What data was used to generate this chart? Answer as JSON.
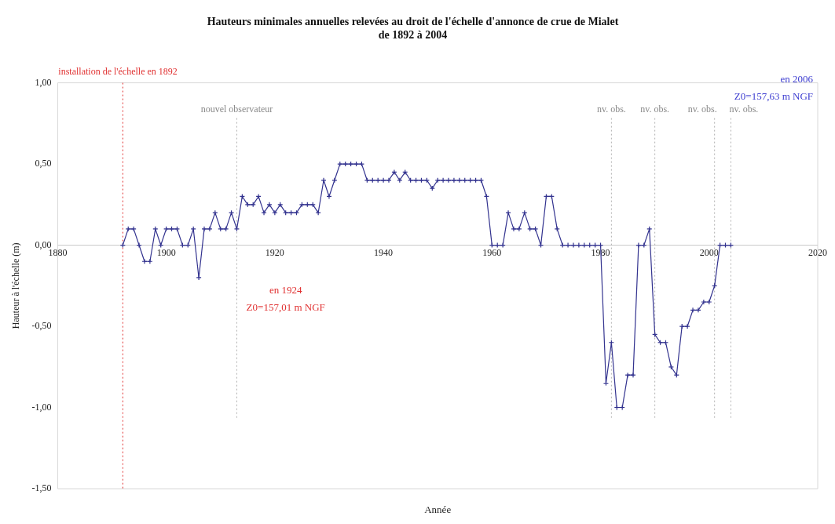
{
  "chart_data": {
    "type": "line",
    "title": "Hauteurs minimales annuelles relevées au droit de l'échelle d'annonce de crue de Mialet\nde 1892 à 2004",
    "xlabel": "Année",
    "ylabel": "Hauteur à l'échelle (m)",
    "x": [
      1892,
      1893,
      1894,
      1895,
      1896,
      1897,
      1898,
      1899,
      1900,
      1901,
      1902,
      1903,
      1904,
      1905,
      1906,
      1907,
      1908,
      1909,
      1910,
      1911,
      1912,
      1913,
      1914,
      1915,
      1916,
      1917,
      1918,
      1919,
      1920,
      1921,
      1922,
      1923,
      1924,
      1925,
      1926,
      1927,
      1928,
      1929,
      1930,
      1931,
      1932,
      1933,
      1934,
      1935,
      1936,
      1937,
      1938,
      1939,
      1940,
      1941,
      1942,
      1943,
      1944,
      1945,
      1946,
      1947,
      1948,
      1949,
      1950,
      1951,
      1952,
      1953,
      1954,
      1955,
      1956,
      1957,
      1958,
      1959,
      1960,
      1961,
      1962,
      1963,
      1964,
      1965,
      1966,
      1967,
      1968,
      1969,
      1970,
      1971,
      1972,
      1973,
      1974,
      1975,
      1976,
      1977,
      1978,
      1979,
      1980,
      1981,
      1982,
      1983,
      1984,
      1985,
      1986,
      1987,
      1988,
      1989,
      1990,
      1991,
      1992,
      1993,
      1994,
      1995,
      1996,
      1997,
      1998,
      1999,
      2000,
      2001,
      2002,
      2003,
      2004
    ],
    "series": [
      {
        "color": "#33338f",
        "values": [
          0,
          0.1,
          0.1,
          0,
          -0.1,
          -0.1,
          0.1,
          0,
          0.1,
          0.1,
          0.1,
          0,
          0,
          0.1,
          -0.2,
          0.1,
          0.1,
          0.2,
          0.1,
          0.1,
          0.2,
          0.1,
          0.3,
          0.25,
          0.25,
          0.3,
          0.2,
          0.25,
          0.2,
          0.25,
          0.2,
          0.2,
          0.2,
          0.25,
          0.25,
          0.25,
          0.2,
          0.4,
          0.3,
          0.4,
          0.5,
          0.5,
          0.5,
          0.5,
          0.5,
          0.4,
          0.4,
          0.4,
          0.4,
          0.4,
          0.45,
          0.4,
          0.45,
          0.4,
          0.4,
          0.4,
          0.4,
          0.35,
          0.4,
          0.4,
          0.4,
          0.4,
          0.4,
          0.4,
          0.4,
          0.4,
          0.4,
          0.3,
          0,
          0,
          0,
          0.2,
          0.1,
          0.1,
          0.2,
          0.1,
          0.1,
          0,
          0.3,
          0.3,
          0.1,
          0,
          0,
          0,
          0,
          0,
          0,
          0,
          0,
          -0.85,
          -0.6,
          -1,
          -1,
          -0.8,
          -0.8,
          0,
          0,
          0.1,
          -0.55,
          -0.6,
          -0.6,
          -0.75,
          -0.8,
          -0.5,
          -0.5,
          -0.4,
          -0.4,
          -0.35,
          -0.35,
          -0.25,
          0,
          0,
          0
        ]
      }
    ],
    "xlim": [
      1880,
      2020
    ],
    "xticks": [
      1880,
      1900,
      1920,
      1940,
      1960,
      1980,
      2000,
      2020
    ],
    "ylim": [
      -1.5,
      1
    ],
    "yticks": [
      {
        "value": -1.5,
        "label": "-1,50"
      },
      {
        "value": -1,
        "label": "-1,00"
      },
      {
        "value": -0.5,
        "label": "-0,50"
      },
      {
        "value": 0,
        "label": "0,00"
      },
      {
        "value": 0.5,
        "label": "0,50"
      },
      {
        "value": 1,
        "label": "1,00"
      }
    ],
    "grid": false,
    "legend": false,
    "marker": "cross",
    "line_style": "solid",
    "ref_lines": [
      {
        "axis": "x",
        "value": 1892,
        "label": "installation de l'échelle en 1892",
        "color": "#e03030",
        "line_style": "dotted"
      },
      {
        "axis": "x",
        "value": 1913,
        "label": "nouvel observateur",
        "color": "#b0b0b0",
        "line_style": "dotted"
      },
      {
        "axis": "x",
        "value": 1982,
        "label": "nv. obs.",
        "color": "#b0b0b0",
        "line_style": "dotted"
      },
      {
        "axis": "x",
        "value": 1990,
        "label": "nv. obs.",
        "color": "#b0b0b0",
        "line_style": "dotted"
      },
      {
        "axis": "x",
        "value": 2001,
        "label": "nv. obs.",
        "color": "#b0b0b0",
        "line_style": "dotted"
      },
      {
        "axis": "x",
        "value": 2004,
        "label": "nv. obs.",
        "color": "#b0b0b0",
        "line_style": "dotted"
      }
    ],
    "annotations": [
      "en 1924\nZ0=157,01 m NGF",
      "en 2006\nZ0=157,63 m NGF"
    ]
  }
}
